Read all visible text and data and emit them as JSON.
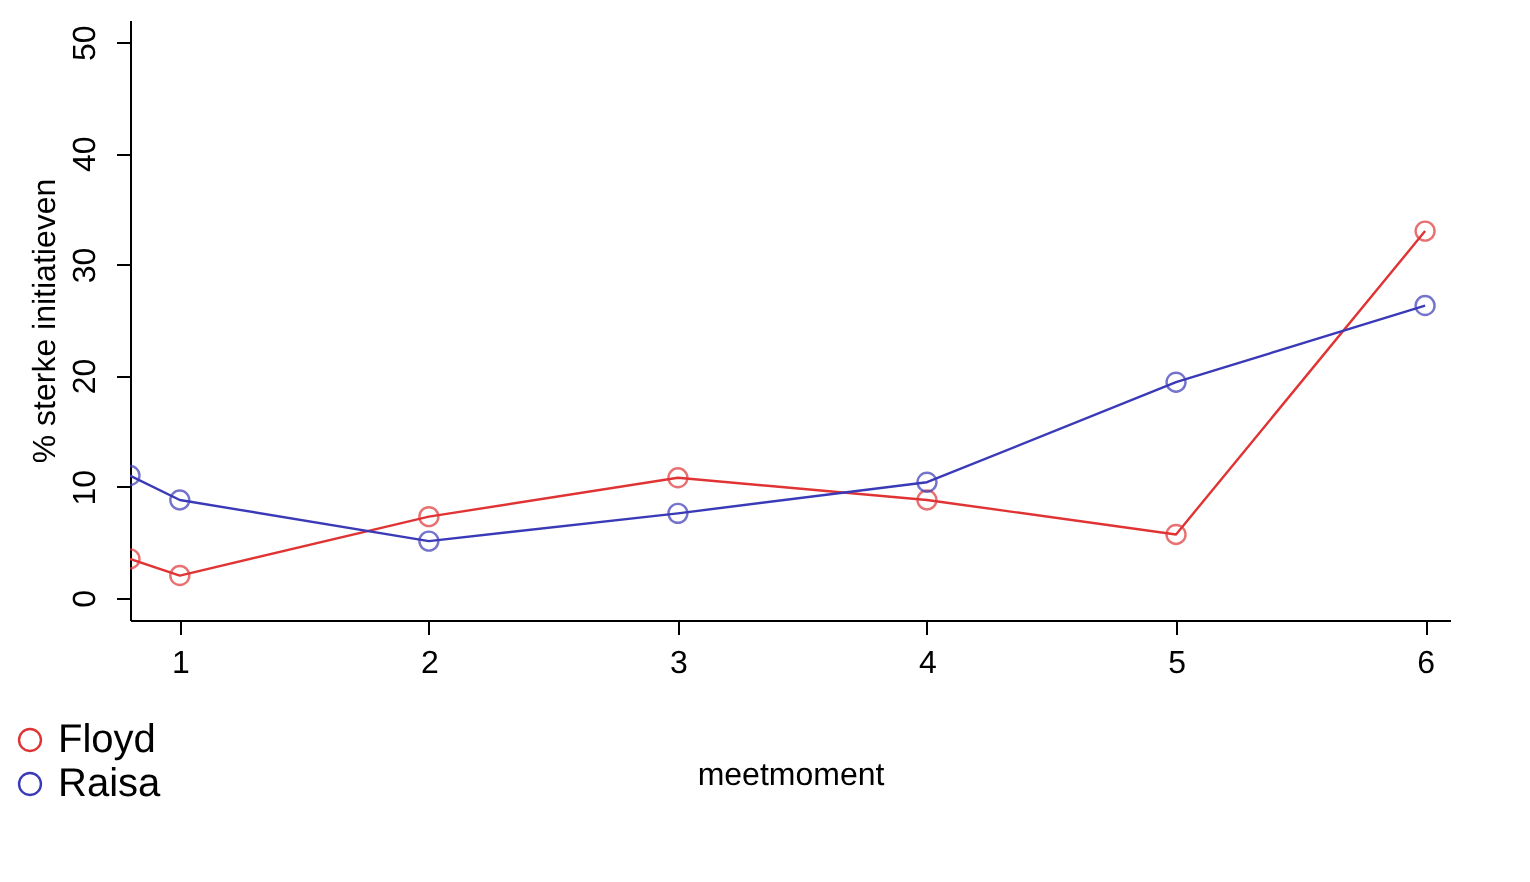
{
  "chart_data": {
    "type": "line",
    "xlabel": "meetmoment",
    "ylabel": "% sterke initiatieven",
    "xlim": [
      0.8,
      6.1
    ],
    "xticks": [
      1,
      2,
      3,
      4,
      5,
      6
    ],
    "ylim": [
      -2,
      52
    ],
    "yticks": [
      0,
      10,
      20,
      30,
      40,
      50
    ],
    "marker": "circle",
    "line_style": "solid",
    "grid": false,
    "legend": "bottom left",
    "series": [
      {
        "name": "Floyd",
        "color": "#e03434",
        "x": [
          0.8,
          1,
          2,
          3,
          4,
          5,
          6
        ],
        "values": [
          3.5,
          2,
          7.3,
          10.8,
          8.8,
          5.7,
          33
        ]
      },
      {
        "name": "Raisa",
        "color": "#3a3ab8",
        "x": [
          0.8,
          1,
          2,
          3,
          4,
          5,
          6
        ],
        "values": [
          11,
          8.8,
          5.1,
          7.6,
          10.4,
          19.4,
          26.3
        ]
      }
    ]
  }
}
